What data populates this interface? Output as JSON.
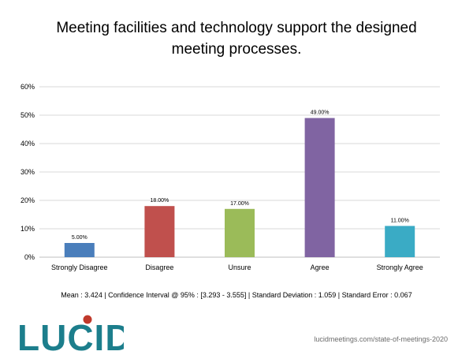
{
  "title": "Meeting facilities and technology support the designed meeting processes.",
  "chart_data": {
    "type": "bar",
    "categories": [
      "Strongly Disagree",
      "Disagree",
      "Unsure",
      "Agree",
      "Strongly Agree"
    ],
    "values": [
      5,
      18,
      17,
      49,
      11
    ],
    "data_labels": [
      "5.00%",
      "18.00%",
      "17.00%",
      "49.00%",
      "11.00%"
    ],
    "colors": [
      "#4a7ebb",
      "#c0504d",
      "#9bbb59",
      "#8064a2",
      "#3aabc5"
    ],
    "ylim": [
      0,
      60
    ],
    "yticks": [
      0,
      10,
      20,
      30,
      40,
      50,
      60
    ],
    "ytick_labels": [
      "0%",
      "10%",
      "20%",
      "30%",
      "40%",
      "50%",
      "60%"
    ],
    "grid": true
  },
  "stats": "Mean : 3.424  |  Confidence Interval @ 95% : [3.293 - 3.555]  |  Standard Deviation : 1.059  |  Standard Error : 0.067",
  "logo_text": "LUCID",
  "logo_color": "#1c7e8c",
  "logo_dot_color": "#c0392b",
  "source": "lucidmeetings.com/state-of-meetings-2020"
}
